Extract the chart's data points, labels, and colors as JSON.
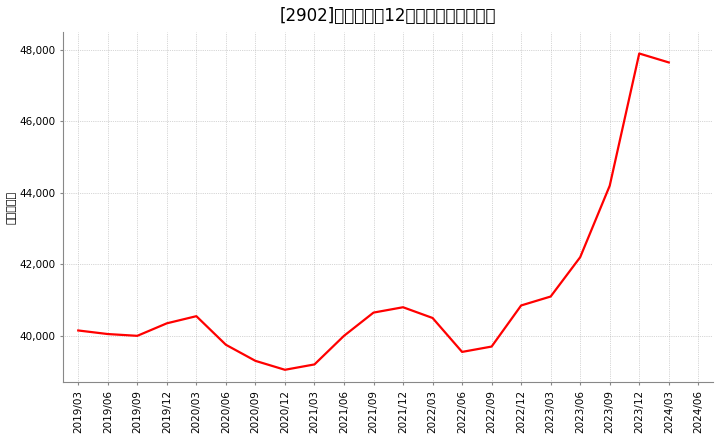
{
  "title": "[2902]　売上高の12か月移動合計の推移",
  "ylabel": "（百万円）",
  "line_color": "#ff0000",
  "bg_color": "#ffffff",
  "plot_bg_color": "#ffffff",
  "grid_color": "#b0b0b0",
  "ylim": [
    38700,
    48500
  ],
  "yticks": [
    40000,
    42000,
    44000,
    46000,
    48000
  ],
  "ytick_labels": [
    "40,000",
    "42,000",
    "44,000",
    "46,000",
    "48,000"
  ],
  "dates": [
    "2019/03",
    "2019/06",
    "2019/09",
    "2019/12",
    "2020/03",
    "2020/06",
    "2020/09",
    "2020/12",
    "2021/03",
    "2021/06",
    "2021/09",
    "2021/12",
    "2022/03",
    "2022/06",
    "2022/09",
    "2022/12",
    "2023/03",
    "2023/06",
    "2023/09",
    "2023/12",
    "2024/03",
    "2024/06"
  ],
  "values": [
    40150,
    40050,
    40000,
    40350,
    40550,
    39750,
    39300,
    39050,
    39200,
    40000,
    40650,
    40800,
    40500,
    39550,
    39700,
    40850,
    41100,
    42200,
    44200,
    47900,
    47650,
    null
  ],
  "title_fontsize": 12,
  "tick_fontsize": 7.5,
  "ylabel_fontsize": 8,
  "line_width": 1.6
}
